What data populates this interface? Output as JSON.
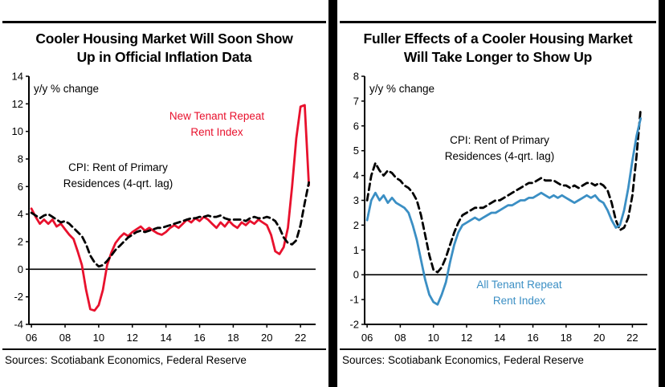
{
  "accent_colors": {
    "red": "#e8112d",
    "blue": "#3b8fc4",
    "black": "#000000"
  },
  "panels": [
    {
      "title": "Cooler Housing Market Will Soon Show\nUp in Official Inflation Data",
      "unit_label": "y/y % change",
      "annotations": [
        {
          "text": "New Tenant Repeat\nRent Index",
          "color": "#e8112d"
        },
        {
          "text": "CPI: Rent of Primary\nResidences (4-qrt. lag)",
          "color": "#000000"
        }
      ],
      "source": "Sources: Scotiabank Economics, Federal Reserve"
    },
    {
      "title": "Fuller Effects of a Cooler Housing Market\nWill Take Longer to Show Up",
      "unit_label": "y/y % change",
      "annotations": [
        {
          "text": "CPI: Rent of Primary\nResidences (4-qrt. lag)",
          "color": "#000000"
        },
        {
          "text": "All Tenant Repeat\nRent Index",
          "color": "#3b8fc4"
        }
      ],
      "source": "Sources: Scotiabank Economics, Federal Reserve"
    }
  ],
  "chart_data": [
    {
      "type": "line",
      "title": "Cooler Housing Market Will Soon Show Up in Official Inflation Data",
      "ylabel": "y/y % change",
      "xlabel": "",
      "grid": false,
      "legend": "inline-annotations",
      "ylim": [
        -4,
        14
      ],
      "ytick": 2,
      "xlim": [
        2005.85,
        2022.9
      ],
      "xticks": [
        2006,
        2008,
        2010,
        2012,
        2014,
        2016,
        2018,
        2020,
        2022
      ],
      "xtick_labels": [
        "06",
        "08",
        "10",
        "12",
        "14",
        "16",
        "18",
        "20",
        "22"
      ],
      "x": [
        2006,
        2006.25,
        2006.5,
        2006.75,
        2007,
        2007.25,
        2007.5,
        2007.75,
        2008,
        2008.25,
        2008.5,
        2008.75,
        2009,
        2009.25,
        2009.5,
        2009.75,
        2010,
        2010.25,
        2010.5,
        2010.75,
        2011,
        2011.25,
        2011.5,
        2011.75,
        2012,
        2012.25,
        2012.5,
        2012.75,
        2013,
        2013.25,
        2013.5,
        2013.75,
        2014,
        2014.25,
        2014.5,
        2014.75,
        2015,
        2015.25,
        2015.5,
        2015.75,
        2016,
        2016.25,
        2016.5,
        2016.75,
        2017,
        2017.25,
        2017.5,
        2017.75,
        2018,
        2018.25,
        2018.5,
        2018.75,
        2019,
        2019.25,
        2019.5,
        2019.75,
        2020,
        2020.25,
        2020.5,
        2020.75,
        2021,
        2021.25,
        2021.5,
        2021.75,
        2022,
        2022.25,
        2022.5
      ],
      "series": [
        {
          "name": "New Tenant Repeat Rent Index",
          "color": "#e8112d",
          "dash": null,
          "values": [
            4.4,
            3.8,
            3.3,
            3.6,
            3.3,
            3.6,
            3.1,
            3.3,
            2.9,
            2.5,
            2.2,
            1.3,
            0.3,
            -1.5,
            -2.9,
            -3.0,
            -2.6,
            -1.5,
            0.3,
            1.2,
            1.9,
            2.3,
            2.6,
            2.4,
            2.7,
            2.9,
            3.1,
            2.8,
            3.0,
            2.8,
            2.6,
            2.5,
            2.7,
            3.0,
            3.2,
            3.0,
            3.3,
            3.6,
            3.4,
            3.7,
            3.5,
            3.8,
            3.6,
            3.3,
            3.0,
            3.4,
            3.1,
            3.5,
            3.2,
            3.0,
            3.4,
            3.2,
            3.5,
            3.3,
            3.6,
            3.4,
            3.2,
            2.5,
            1.3,
            1.1,
            1.6,
            3.0,
            6.0,
            9.5,
            11.8,
            11.9,
            6.1
          ]
        },
        {
          "name": "CPI: Rent of Primary Residences (4-qrt. lag)",
          "color": "#000000",
          "dash": "8 5",
          "values": [
            4.1,
            3.9,
            3.7,
            3.9,
            4.0,
            3.8,
            3.6,
            3.4,
            3.5,
            3.3,
            3.0,
            2.7,
            2.4,
            1.8,
            1.0,
            0.5,
            0.2,
            0.3,
            0.6,
            1.0,
            1.4,
            1.7,
            2.0,
            2.3,
            2.5,
            2.7,
            2.8,
            2.7,
            2.8,
            2.9,
            3.0,
            3.0,
            3.1,
            3.2,
            3.3,
            3.4,
            3.5,
            3.6,
            3.7,
            3.7,
            3.8,
            3.8,
            3.9,
            3.8,
            3.8,
            3.9,
            3.7,
            3.6,
            3.6,
            3.6,
            3.6,
            3.5,
            3.7,
            3.8,
            3.7,
            3.7,
            3.8,
            3.7,
            3.5,
            3.0,
            2.3,
            1.9,
            1.8,
            2.1,
            3.2,
            4.8,
            6.3
          ]
        }
      ]
    },
    {
      "type": "line",
      "title": "Fuller Effects of a Cooler Housing Market Will Take Longer to Show Up",
      "ylabel": "y/y % change",
      "xlabel": "",
      "grid": false,
      "legend": "inline-annotations",
      "ylim": [
        -2,
        8
      ],
      "ytick": 1,
      "xlim": [
        2005.85,
        2022.9
      ],
      "xticks": [
        2006,
        2008,
        2010,
        2012,
        2014,
        2016,
        2018,
        2020,
        2022
      ],
      "xtick_labels": [
        "06",
        "08",
        "10",
        "12",
        "14",
        "16",
        "18",
        "20",
        "22"
      ],
      "x": [
        2006,
        2006.25,
        2006.5,
        2006.75,
        2007,
        2007.25,
        2007.5,
        2007.75,
        2008,
        2008.25,
        2008.5,
        2008.75,
        2009,
        2009.25,
        2009.5,
        2009.75,
        2010,
        2010.25,
        2010.5,
        2010.75,
        2011,
        2011.25,
        2011.5,
        2011.75,
        2012,
        2012.25,
        2012.5,
        2012.75,
        2013,
        2013.25,
        2013.5,
        2013.75,
        2014,
        2014.25,
        2014.5,
        2014.75,
        2015,
        2015.25,
        2015.5,
        2015.75,
        2016,
        2016.25,
        2016.5,
        2016.75,
        2017,
        2017.25,
        2017.5,
        2017.75,
        2018,
        2018.25,
        2018.5,
        2018.75,
        2019,
        2019.25,
        2019.5,
        2019.75,
        2020,
        2020.25,
        2020.5,
        2020.75,
        2021,
        2021.25,
        2021.5,
        2021.75,
        2022,
        2022.25,
        2022.5
      ],
      "series": [
        {
          "name": "CPI: Rent of Primary Residences (4-qrt. lag)",
          "color": "#000000",
          "dash": "8 5",
          "values": [
            3.0,
            4.0,
            4.5,
            4.2,
            4.0,
            4.2,
            4.1,
            3.9,
            3.8,
            3.6,
            3.5,
            3.3,
            3.0,
            2.4,
            1.6,
            0.8,
            0.2,
            0.1,
            0.3,
            0.7,
            1.2,
            1.7,
            2.1,
            2.4,
            2.5,
            2.6,
            2.7,
            2.7,
            2.7,
            2.8,
            2.9,
            3.0,
            3.0,
            3.1,
            3.2,
            3.3,
            3.4,
            3.5,
            3.6,
            3.7,
            3.7,
            3.8,
            3.9,
            3.8,
            3.8,
            3.8,
            3.7,
            3.6,
            3.6,
            3.5,
            3.6,
            3.5,
            3.6,
            3.7,
            3.7,
            3.6,
            3.7,
            3.6,
            3.4,
            2.9,
            2.2,
            1.8,
            1.9,
            2.3,
            3.2,
            4.8,
            6.7
          ]
        },
        {
          "name": "All Tenant Repeat Rent Index",
          "color": "#3b8fc4",
          "dash": null,
          "values": [
            2.2,
            3.0,
            3.3,
            3.0,
            3.2,
            2.9,
            3.1,
            2.9,
            2.8,
            2.7,
            2.5,
            2.0,
            1.4,
            0.6,
            -0.2,
            -0.8,
            -1.1,
            -1.2,
            -0.8,
            -0.3,
            0.5,
            1.2,
            1.7,
            2.0,
            2.1,
            2.2,
            2.3,
            2.2,
            2.3,
            2.4,
            2.5,
            2.5,
            2.6,
            2.7,
            2.8,
            2.8,
            2.9,
            3.0,
            3.0,
            3.1,
            3.1,
            3.2,
            3.3,
            3.2,
            3.1,
            3.2,
            3.1,
            3.2,
            3.1,
            3.0,
            2.9,
            3.0,
            3.1,
            3.2,
            3.1,
            3.2,
            3.0,
            2.9,
            2.6,
            2.2,
            1.9,
            2.0,
            2.6,
            3.5,
            4.6,
            5.6,
            6.3
          ]
        }
      ]
    }
  ]
}
